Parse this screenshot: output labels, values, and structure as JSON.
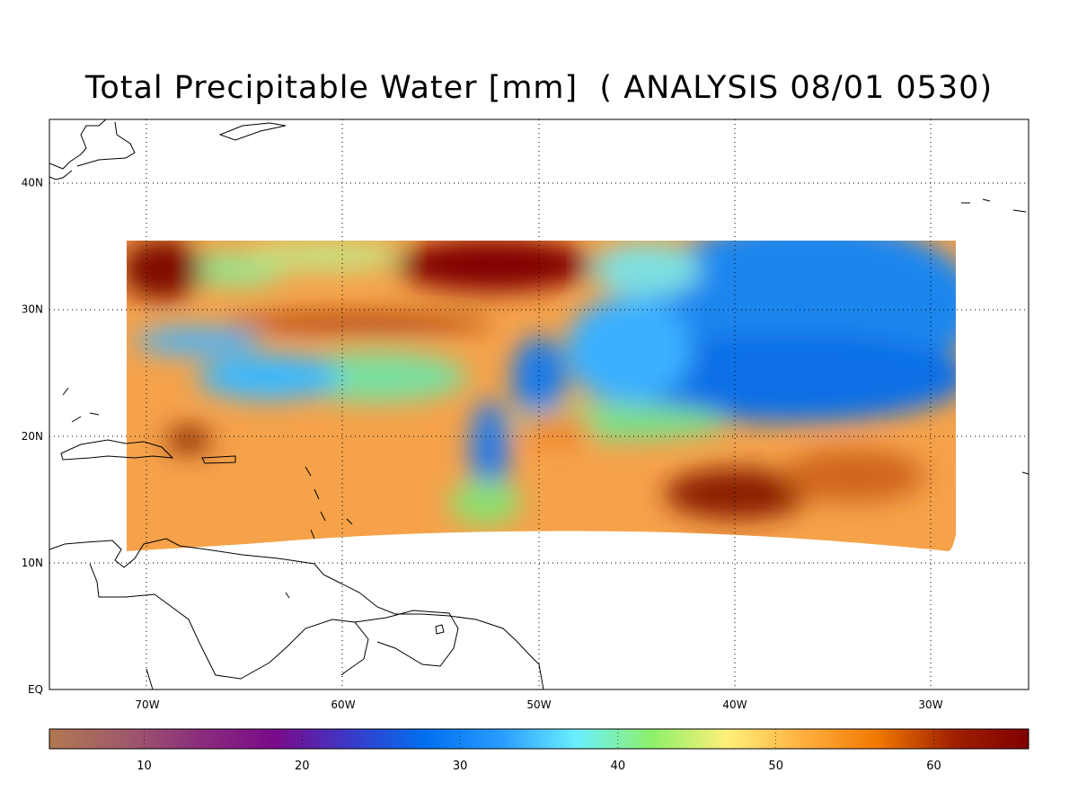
{
  "title": "Total Precipitable Water [mm]  ( ANALYSIS 08/01 0530)",
  "map": {
    "lon_range": [
      -75,
      -25
    ],
    "lat_range": [
      0,
      45
    ],
    "lon_ticks": [
      {
        "value": -70,
        "label": "70W"
      },
      {
        "value": -60,
        "label": "60W"
      },
      {
        "value": -50,
        "label": "50W"
      },
      {
        "value": -40,
        "label": "40W"
      },
      {
        "value": -30,
        "label": "30W"
      }
    ],
    "lat_ticks": [
      {
        "value": 0,
        "label": "EQ"
      },
      {
        "value": 10,
        "label": "10N"
      },
      {
        "value": 20,
        "label": "20N"
      },
      {
        "value": 30,
        "label": "30N"
      },
      {
        "value": 40,
        "label": "40N"
      }
    ],
    "grid": "dotted"
  },
  "colorbar": {
    "range": [
      4,
      66
    ],
    "ticks": [
      {
        "value": 10,
        "label": "10"
      },
      {
        "value": 20,
        "label": "20"
      },
      {
        "value": 30,
        "label": "30"
      },
      {
        "value": 40,
        "label": "40"
      },
      {
        "value": 50,
        "label": "50"
      },
      {
        "value": 60,
        "label": "60"
      }
    ],
    "colors": [
      "#b07850",
      "#a05a6a",
      "#8a2d7c",
      "#7a0a8a",
      "#3a3ac8",
      "#0070f0",
      "#2a9cff",
      "#6af0ff",
      "#8ef06a",
      "#fff07a",
      "#ffb040",
      "#f07800",
      "#a02000",
      "#800000"
    ]
  }
}
